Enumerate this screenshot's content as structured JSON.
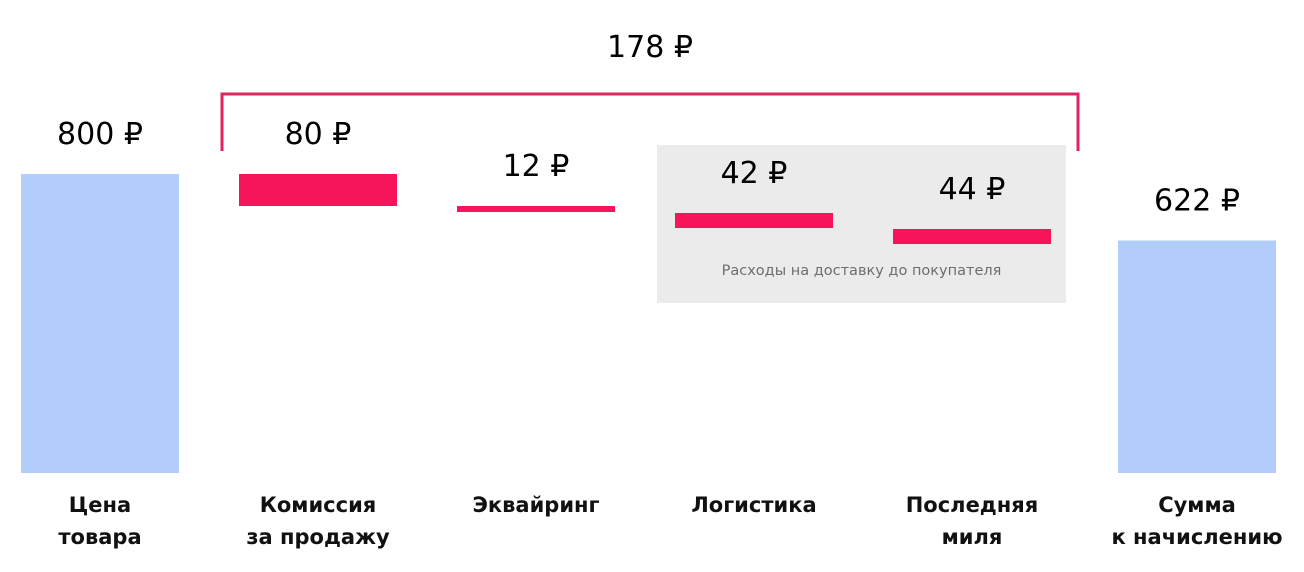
{
  "colors": {
    "total_bar": "#b3cdfb",
    "deduction_bar": "#f8145a",
    "bracket": "#e0245e",
    "group_background": "#ebebeb"
  },
  "chart_data": {
    "type": "bar",
    "subtype": "waterfall",
    "currency": "₽",
    "categories": [
      [
        "Цена",
        "товара"
      ],
      [
        "Комиссия",
        "за продажу"
      ],
      [
        "Эквайринг"
      ],
      [
        "Логистика"
      ],
      [
        "Последняя",
        "миля"
      ],
      [
        "Сумма",
        "к начислению"
      ]
    ],
    "values": [
      800,
      80,
      12,
      42,
      44,
      622
    ],
    "value_labels": [
      "800 ₽",
      "80 ₽",
      "12 ₽",
      "42 ₽",
      "44 ₽",
      "622 ₽"
    ],
    "kinds": [
      "total",
      "deduction",
      "deduction",
      "deduction",
      "deduction",
      "total"
    ],
    "bracket": {
      "label": "178 ₽",
      "value": 178,
      "spans_categories": [
        1,
        2,
        3,
        4
      ]
    },
    "group": {
      "label": "Расходы на доставку до покупателя",
      "spans_categories": [
        3,
        4
      ]
    },
    "ylim": [
      0,
      800
    ],
    "grid": false,
    "legend": "none"
  }
}
